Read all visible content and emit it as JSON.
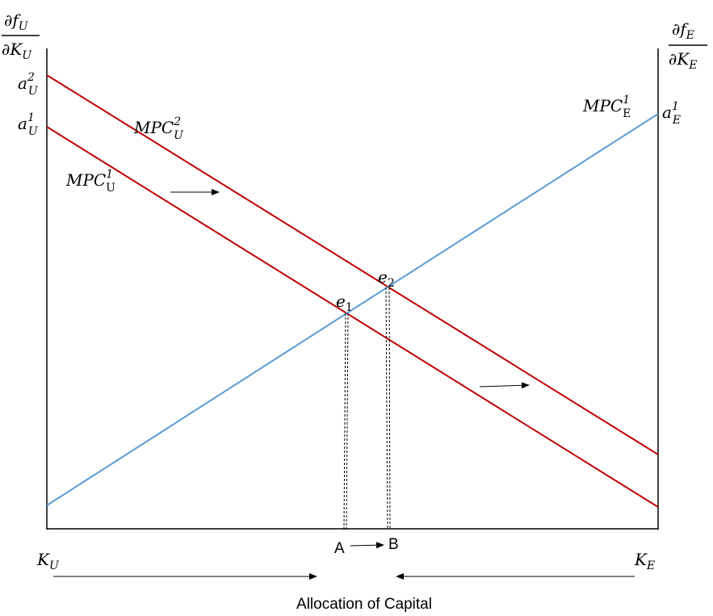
{
  "colors": {
    "axis": "#000000",
    "mpc_u": "#c00000",
    "mpc_e": "#5b9bd5",
    "guide": "#000000"
  },
  "left_axis": {
    "numerator": {
      "base": "∂f",
      "sub": "U"
    },
    "denominator": {
      "base": "∂K",
      "sub": "U"
    }
  },
  "right_axis": {
    "numerator": {
      "base": "∂f",
      "sub": "E"
    },
    "denominator": {
      "base": "∂K",
      "sub": "E"
    }
  },
  "intercepts": {
    "aU2": {
      "base": "a",
      "sub": "U",
      "sup": "2"
    },
    "aU1": {
      "base": "a",
      "sub": "U",
      "sup": "1"
    },
    "aE1": {
      "base": "a",
      "sub": "E",
      "sup": "1"
    }
  },
  "curves": {
    "mpc_u2": {
      "base": "MPC",
      "sub": "U",
      "sup": "2"
    },
    "mpc_u1": {
      "base": "MPC",
      "sub": "U",
      "sup": "1"
    },
    "mpc_e1": {
      "base": "MPC",
      "sub": "E",
      "sup": "1"
    }
  },
  "equilibria": {
    "e1": {
      "base": "e",
      "sub": "1"
    },
    "e2": {
      "base": "e",
      "sub": "2"
    }
  },
  "x_points": {
    "a": "A",
    "b": "B"
  },
  "x_ends": {
    "ku": {
      "base": "K",
      "sub": "U"
    },
    "ke": {
      "base": "K",
      "sub": "E"
    }
  },
  "x_title": "Allocation of Capital"
}
